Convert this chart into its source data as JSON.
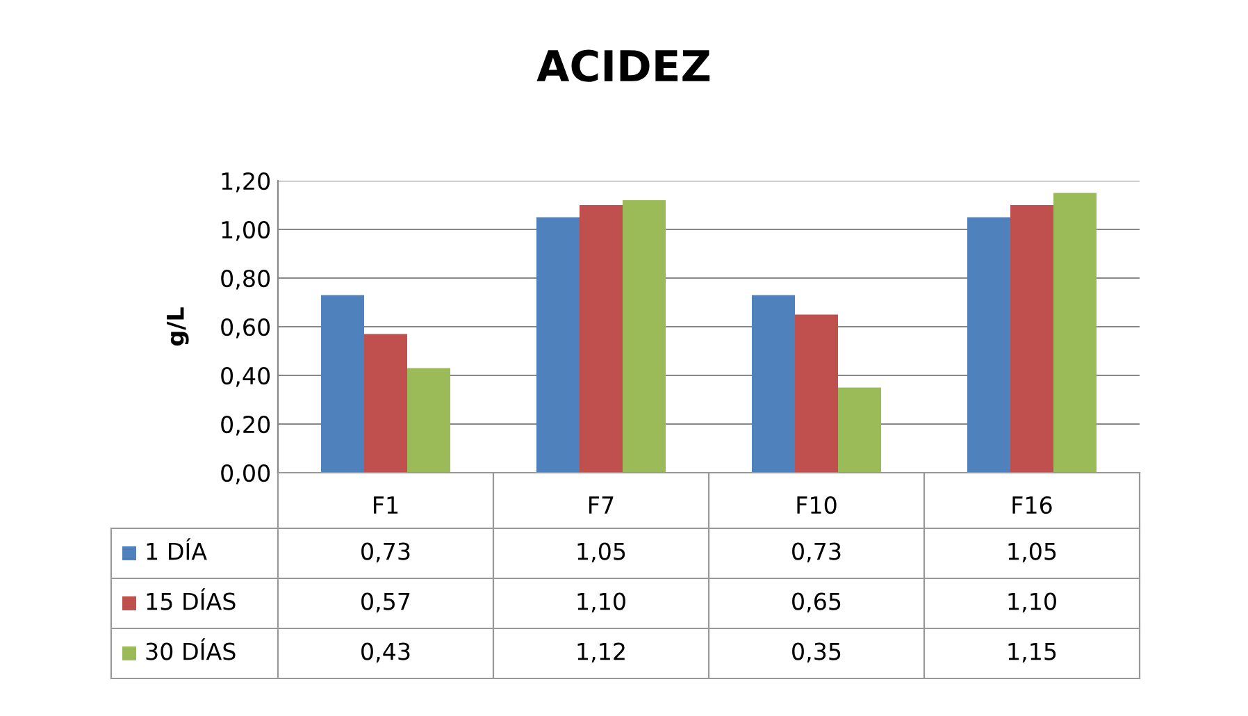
{
  "chart_data": {
    "type": "bar",
    "title": "ACIDEZ",
    "ylabel": "g/L",
    "categories": [
      "F1",
      "F7",
      "F10",
      "F16"
    ],
    "series": [
      {
        "name": "1 DÍA",
        "color": "#4f81bd",
        "values": [
          0.73,
          1.05,
          0.73,
          1.05
        ],
        "value_labels": [
          "0,73",
          "1,05",
          "0,73",
          "1,05"
        ]
      },
      {
        "name": "15 DÍAS",
        "color": "#c0504d",
        "values": [
          0.57,
          1.1,
          0.65,
          1.1
        ],
        "value_labels": [
          "0,57",
          "1,10",
          "0,65",
          "1,10"
        ]
      },
      {
        "name": "30 DÍAS",
        "color": "#9bbb59",
        "values": [
          0.43,
          1.12,
          0.35,
          1.15
        ],
        "value_labels": [
          "0,43",
          "1,12",
          "0,35",
          "1,15"
        ]
      }
    ],
    "ylim": [
      0,
      1.2
    ],
    "yticks": [
      {
        "value": 0,
        "label": "0,00"
      },
      {
        "value": 0.2,
        "label": "0,20"
      },
      {
        "value": 0.4,
        "label": "0,40"
      },
      {
        "value": 0.6,
        "label": "0,60"
      },
      {
        "value": 0.8,
        "label": "0,80"
      },
      {
        "value": 1.0,
        "label": "1,00"
      },
      {
        "value": 1.2,
        "label": "1,20"
      }
    ],
    "grid": "y",
    "legend": "bottom"
  }
}
